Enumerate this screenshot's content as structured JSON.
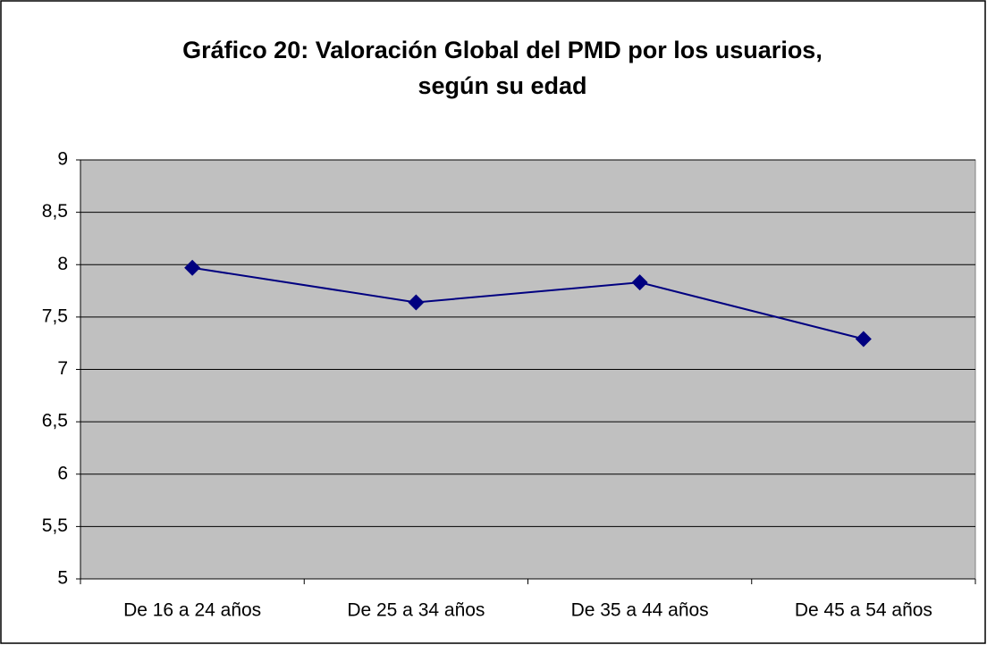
{
  "chart_data": {
    "type": "line",
    "title": [
      "Gráfico 20: Valoración Global del PMD por los usuarios,",
      "según su edad"
    ],
    "categories": [
      "De 16 a 24 años",
      "De 25 a 34 años",
      "De 35 a 44 años",
      "De 45 a 54 años"
    ],
    "values": [
      7.97,
      7.64,
      7.83,
      7.29
    ],
    "color": "#000080",
    "ylim": [
      5,
      9
    ],
    "yticks": [
      5,
      {
        "value": 5.5,
        "label": "5,5"
      },
      6,
      {
        "value": 6.5,
        "label": "6,5"
      },
      7,
      {
        "value": 7.5,
        "label": "7,5"
      },
      8,
      {
        "value": 8.5,
        "label": "8,5"
      },
      9
    ],
    "grid": true
  }
}
